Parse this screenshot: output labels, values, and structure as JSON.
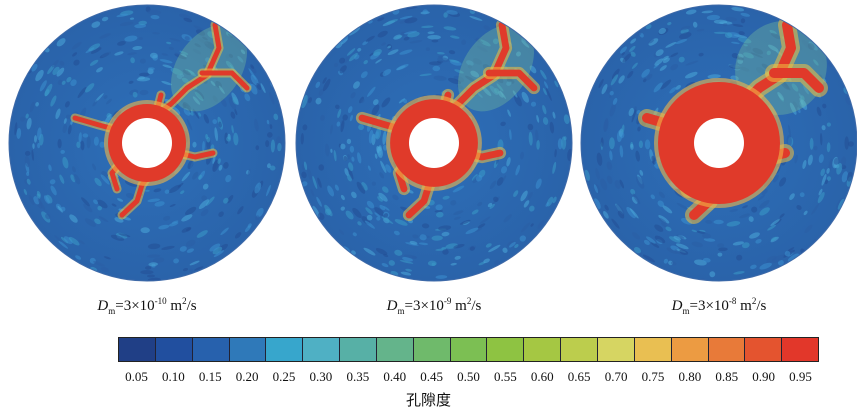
{
  "colors": {
    "matrix": "#2f6db5",
    "fracture": "#e03a2a",
    "hole": "#ffffff"
  },
  "panels": [
    {
      "var": "D",
      "sub": "m",
      "eq": "=3×10",
      "exp": "-10",
      "unit": " m",
      "unit_sup": "2",
      "unit_tail": "/s",
      "dissolution": "thin"
    },
    {
      "var": "D",
      "sub": "m",
      "eq": "=3×10",
      "exp": "-9",
      "unit": " m",
      "unit_sup": "2",
      "unit_tail": "/s",
      "dissolution": "medium"
    },
    {
      "var": "D",
      "sub": "m",
      "eq": "=3×10",
      "exp": "-8",
      "unit": " m",
      "unit_sup": "2",
      "unit_tail": "/s",
      "dissolution": "wide"
    }
  ],
  "colorbar": {
    "title": "孔隙度",
    "ticks": [
      "0.05",
      "0.10",
      "0.15",
      "0.20",
      "0.25",
      "0.30",
      "0.35",
      "0.40",
      "0.45",
      "0.50",
      "0.55",
      "0.60",
      "0.65",
      "0.70",
      "0.75",
      "0.80",
      "0.85",
      "0.90",
      "0.95"
    ],
    "colors": [
      "#203f86",
      "#214f9f",
      "#2761ad",
      "#2f79b9",
      "#37a6cc",
      "#4fb0c4",
      "#57b0a6",
      "#64b48b",
      "#6fba6b",
      "#7cbf53",
      "#8ec342",
      "#a5c743",
      "#bccd4d",
      "#d6d562",
      "#e9bf52",
      "#ec9b42",
      "#e87a39",
      "#e4542f",
      "#e2372a"
    ]
  }
}
